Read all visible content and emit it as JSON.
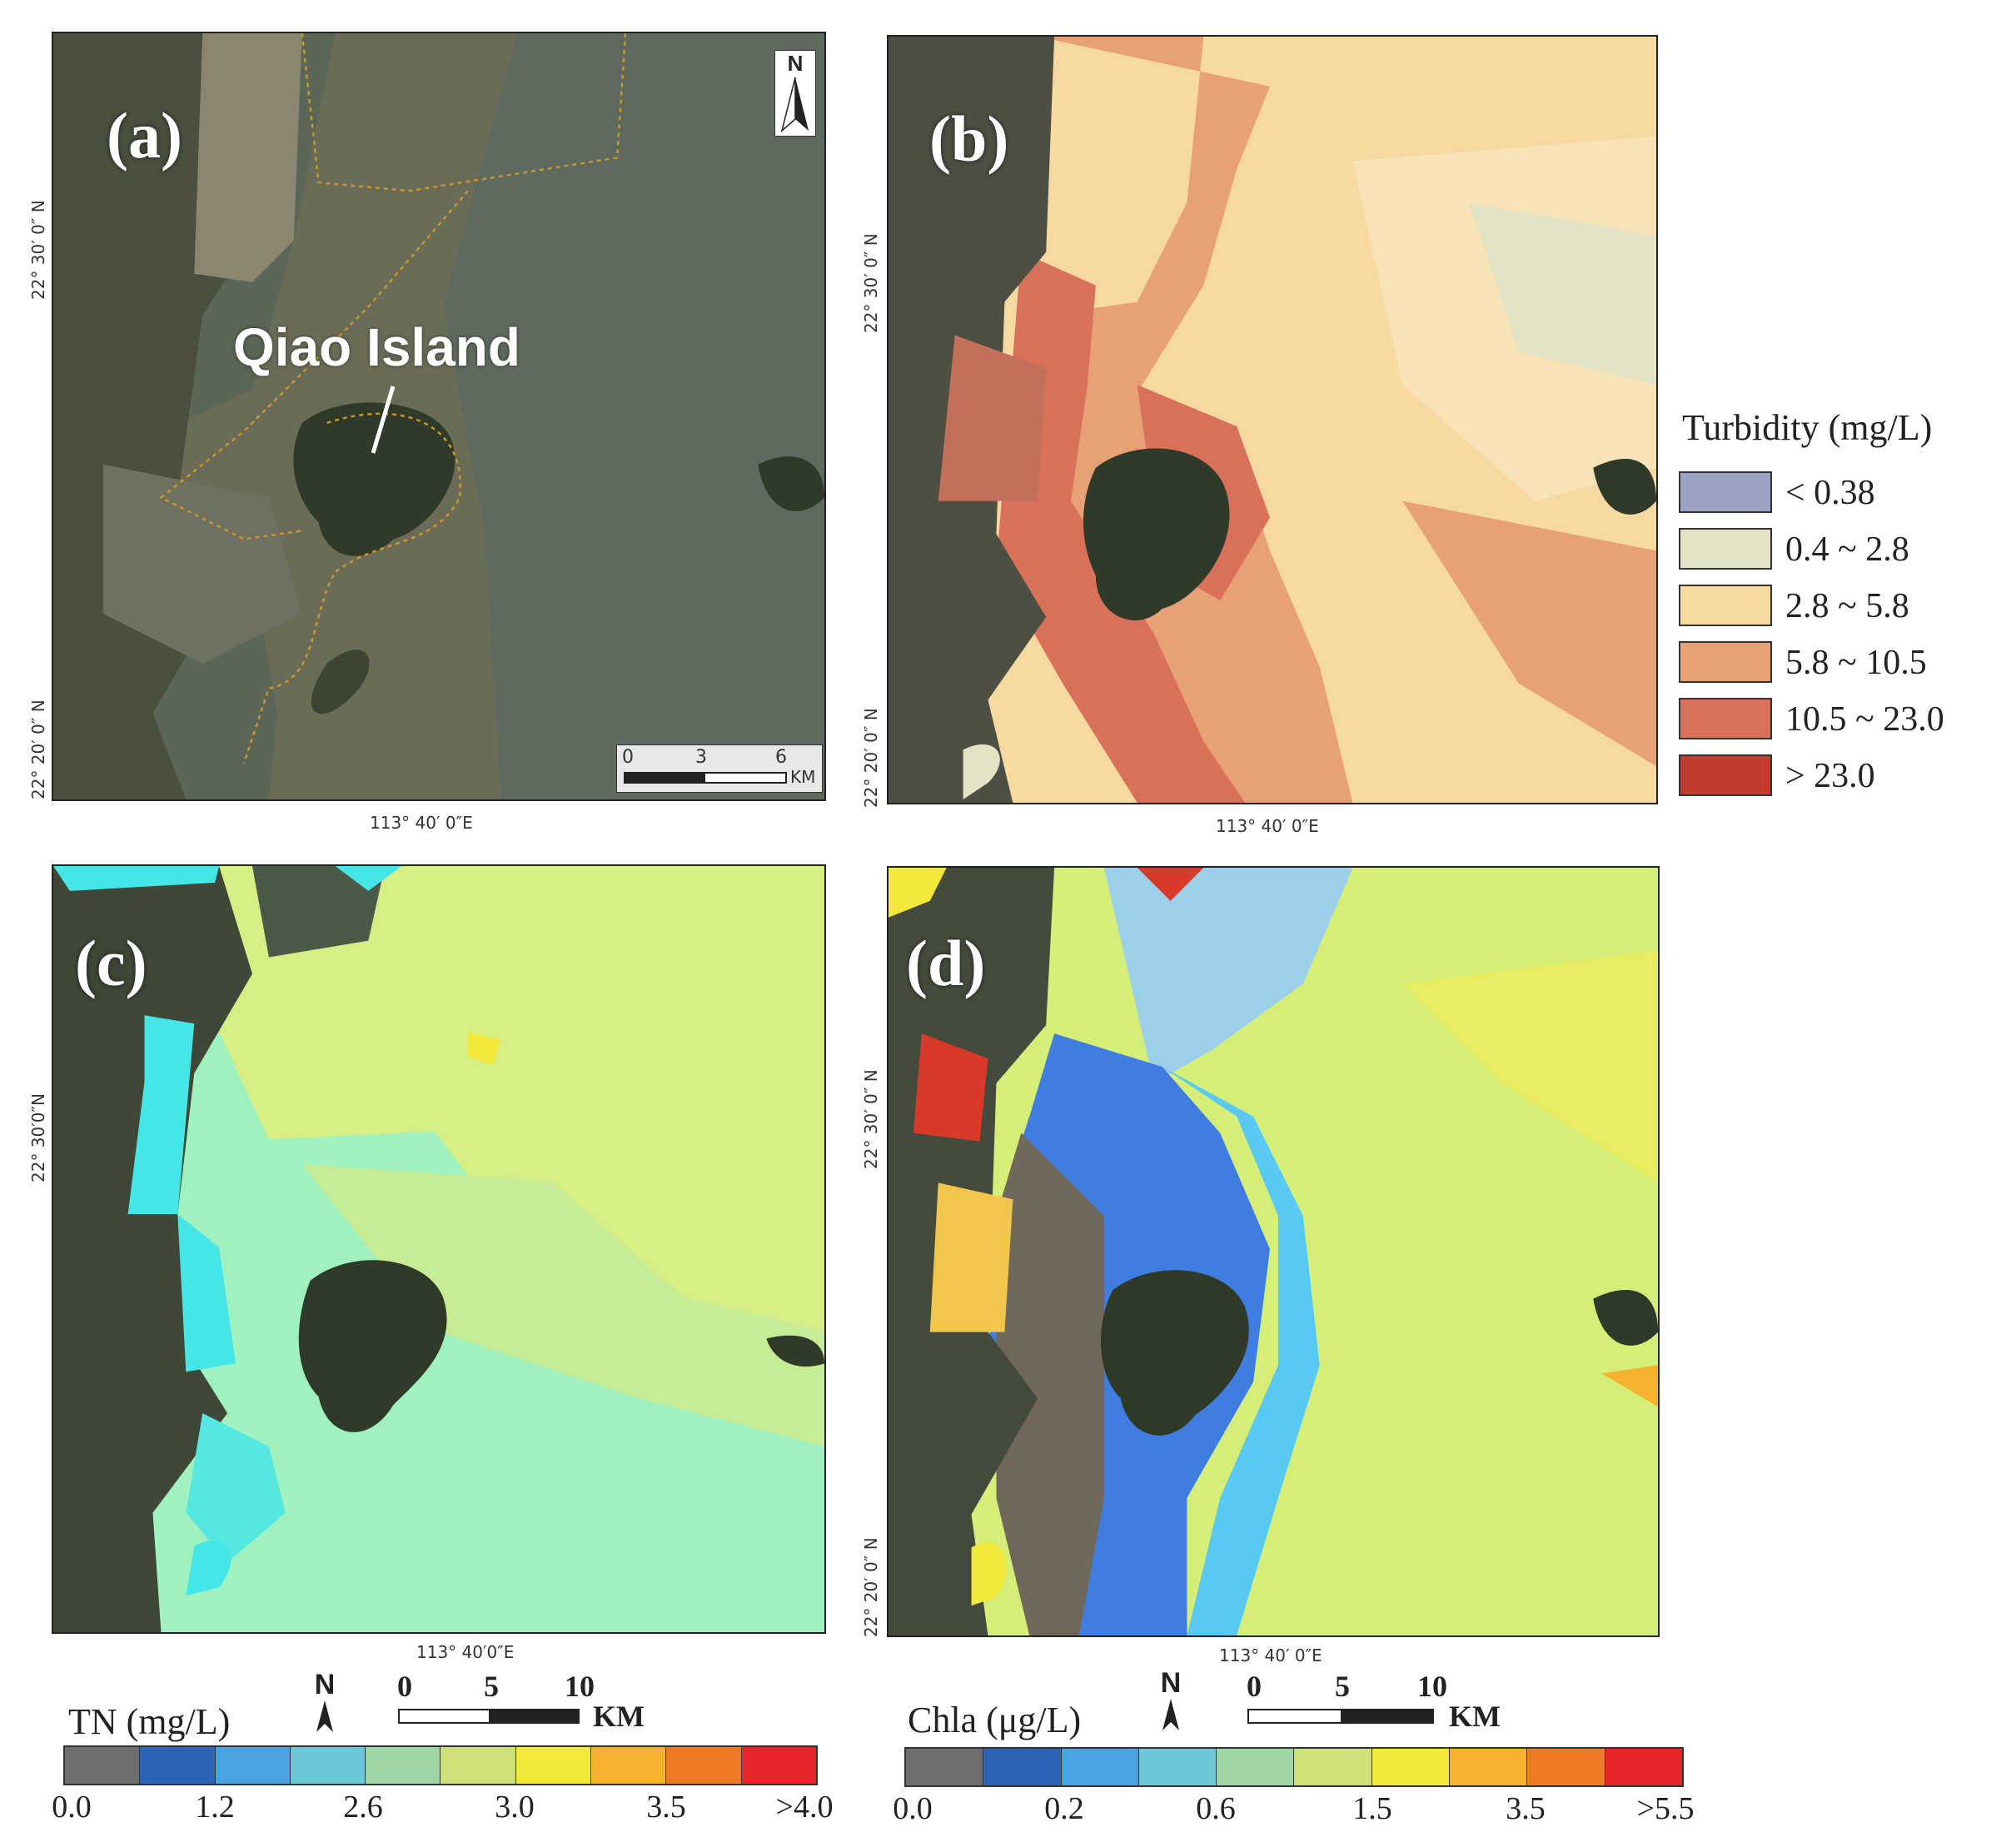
{
  "panels": {
    "a": {
      "label": "(a)",
      "island": "Qiao Island",
      "lat_top": "22° 30′ 0″ N",
      "lat_bottom": "22° 20′ 0″ N",
      "lon": "113° 40′ 0″E",
      "north": "N",
      "scale_ticks": [
        "0",
        "3",
        "6"
      ],
      "scale_unit": "KM"
    },
    "b": {
      "label": "(b)",
      "lat_top": "22° 30′ 0″ N",
      "lat_bottom": "22° 20′ 0″ N",
      "lon": "113° 40′ 0″E"
    },
    "c": {
      "label": "(c)",
      "lat_top": "22° 30′0″N",
      "lon": "113° 40′0″E"
    },
    "d": {
      "label": "(d)",
      "lat_top": "22° 30′ 0″ N",
      "lat_bottom": "22° 20′ 0″ N",
      "lon": "113° 40′ 0″E"
    }
  },
  "turbidity_legend": {
    "title": "Turbidity (mg/L)",
    "classes": [
      {
        "label": "< 0.38",
        "color": "#9aa3c4"
      },
      {
        "label": "0.4 ~ 2.8",
        "color": "#e3e2c6"
      },
      {
        "label": "2.8 ~ 5.8",
        "color": "#f5d9a0"
      },
      {
        "label": "5.8 ~ 10.5",
        "color": "#e8a177"
      },
      {
        "label": "10.5 ~ 23.0",
        "color": "#d9705a"
      },
      {
        "label": "> 23.0",
        "color": "#c43b2f"
      }
    ]
  },
  "tn_legend": {
    "title": "TN (mg/L)",
    "colors": [
      "#6e6e6e",
      "#2f63b8",
      "#4aa2e0",
      "#6cc8d8",
      "#9fd6a8",
      "#cde07a",
      "#f2e93a",
      "#f5b22e",
      "#ef7a25",
      "#e5262b"
    ],
    "ticks": [
      "0.0",
      "1.2",
      "2.6",
      "3.0",
      "3.5",
      ">4.0"
    ],
    "north": "N",
    "scale_ticks": [
      "0",
      "5",
      "10"
    ],
    "scale_unit": "KM"
  },
  "chla_legend": {
    "title": "Chla (μg/L)",
    "colors": [
      "#6e6e6e",
      "#2f63b8",
      "#4aa2e0",
      "#6cc8d8",
      "#9fd6a8",
      "#cde07a",
      "#f2e93a",
      "#f5b22e",
      "#ef7a25",
      "#e5262b"
    ],
    "ticks": [
      "0.0",
      "0.2",
      "0.6",
      "1.5",
      "3.5",
      ">5.5"
    ],
    "north": "N",
    "scale_ticks": [
      "0",
      "5",
      "10"
    ],
    "scale_unit": "KM"
  }
}
